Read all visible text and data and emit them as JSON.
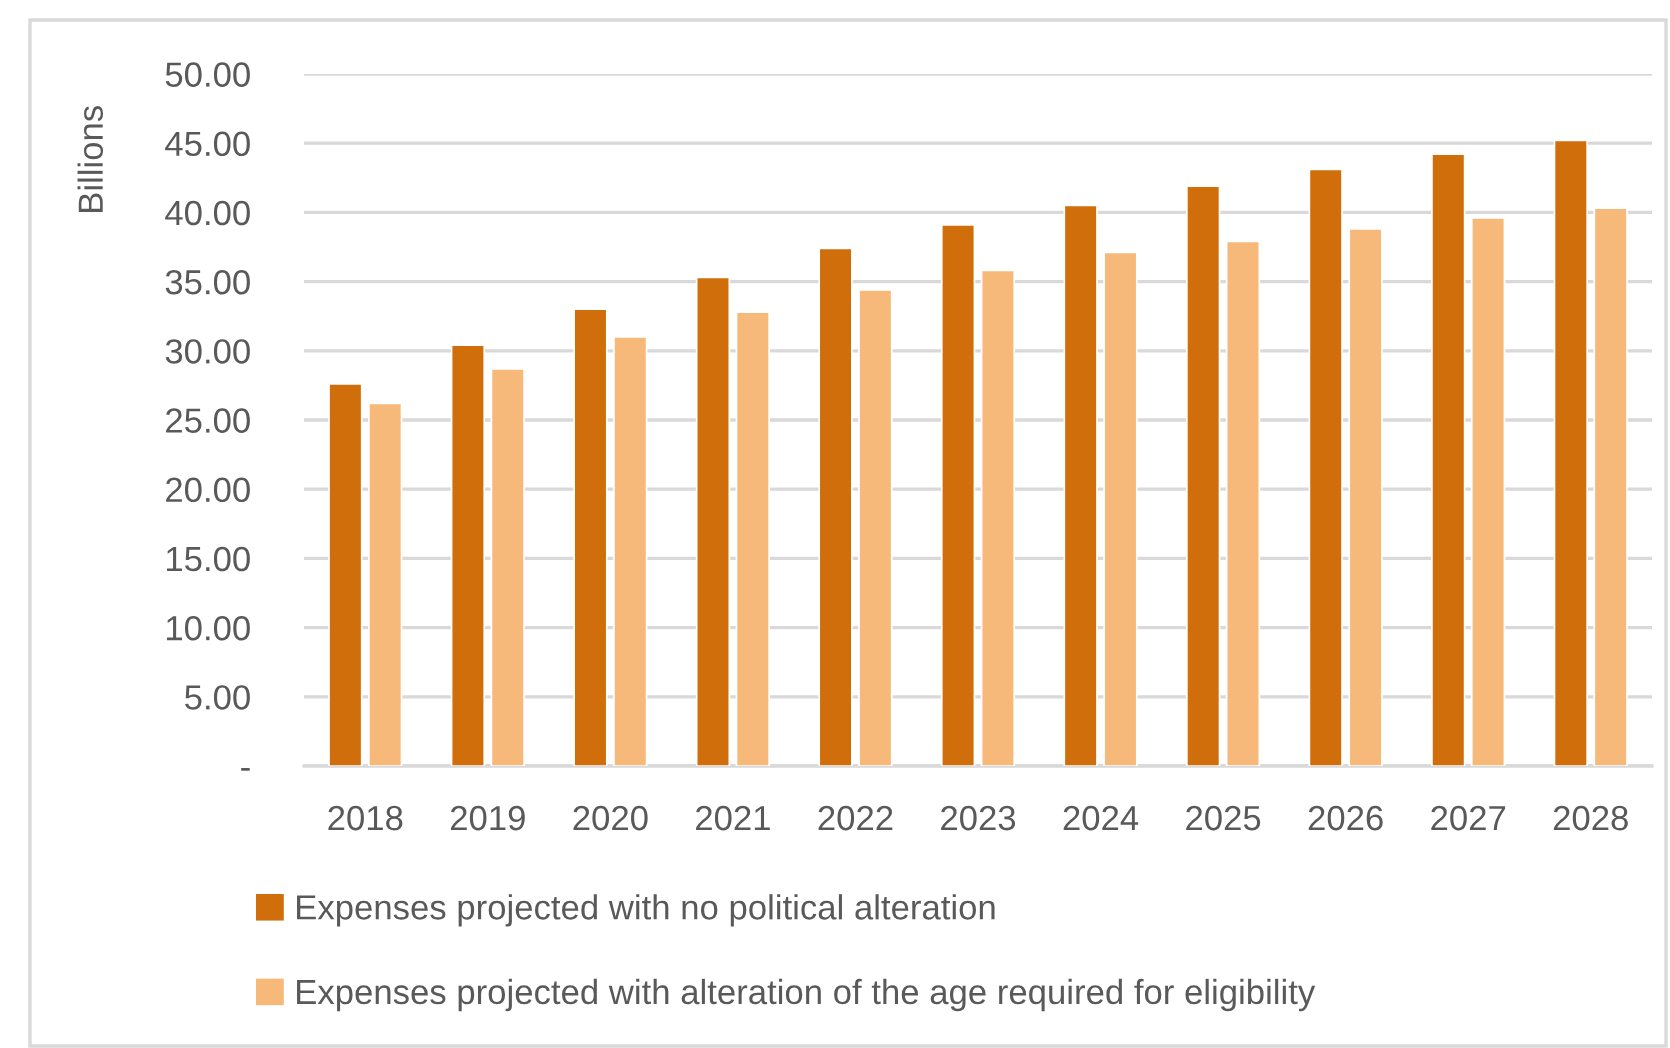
{
  "chart_data": {
    "type": "bar",
    "ylabel": "Billions",
    "categories": [
      "2018",
      "2019",
      "2020",
      "2021",
      "2022",
      "2023",
      "2024",
      "2025",
      "2026",
      "2027",
      "2028"
    ],
    "series": [
      {
        "name": "Expenses projected with no political alteration",
        "color": "#cf6e0a",
        "values": [
          27.6,
          30.4,
          33.0,
          35.3,
          37.4,
          39.1,
          40.5,
          41.9,
          43.1,
          44.2,
          45.2
        ]
      },
      {
        "name": "Expenses projected with alteration of the age required for eligibility",
        "color": "#f7b97a",
        "values": [
          26.2,
          28.7,
          31.0,
          32.8,
          34.4,
          35.8,
          37.1,
          37.9,
          38.8,
          39.6,
          40.3
        ]
      }
    ],
    "ylim": [
      0,
      50
    ],
    "yticks": [
      {
        "value": 0,
        "label": "-"
      },
      {
        "value": 5,
        "label": "5.00"
      },
      {
        "value": 10,
        "label": "10.00"
      },
      {
        "value": 15,
        "label": "15.00"
      },
      {
        "value": 20,
        "label": "20.00"
      },
      {
        "value": 25,
        "label": "25.00"
      },
      {
        "value": 30,
        "label": "30.00"
      },
      {
        "value": 35,
        "label": "35.00"
      },
      {
        "value": 40,
        "label": "40.00"
      },
      {
        "value": 45,
        "label": "45.00"
      },
      {
        "value": 50,
        "label": "50.00"
      }
    ],
    "grid": "y",
    "legend": "bottom"
  }
}
